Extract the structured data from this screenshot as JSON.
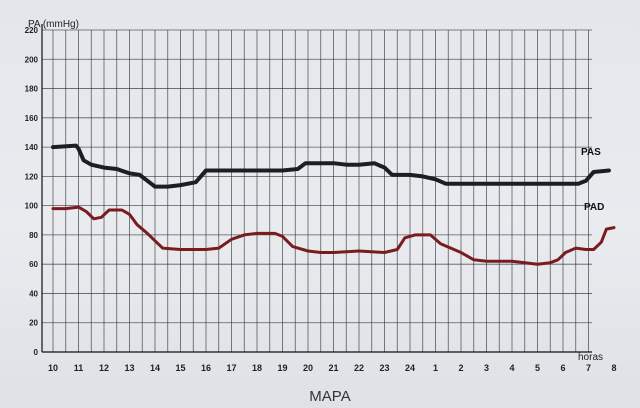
{
  "chart_data": {
    "type": "line",
    "ylabel": "PA (mmHg)",
    "xlabel": "horas",
    "caption": "MAPA",
    "ylim": [
      0,
      220
    ],
    "yticks": [
      0,
      20,
      40,
      60,
      80,
      100,
      120,
      140,
      160,
      180,
      200,
      220
    ],
    "xticks": [
      "10",
      "11",
      "12",
      "13",
      "14",
      "15",
      "16",
      "17",
      "18",
      "19",
      "20",
      "21",
      "22",
      "23",
      "24",
      "1",
      "2",
      "3",
      "4",
      "5",
      "6",
      "7",
      "8"
    ],
    "grid": true,
    "series": [
      {
        "name": "PAS",
        "color": "#1b1f24",
        "points": [
          [
            0,
            140
          ],
          [
            0.9,
            141
          ],
          [
            1.0,
            139
          ],
          [
            1.2,
            131
          ],
          [
            1.5,
            128
          ],
          [
            2.0,
            126
          ],
          [
            2.5,
            125
          ],
          [
            3.0,
            122
          ],
          [
            3.4,
            121
          ],
          [
            3.7,
            117
          ],
          [
            4.0,
            113
          ],
          [
            4.5,
            113
          ],
          [
            5.0,
            114
          ],
          [
            5.6,
            116
          ],
          [
            6.0,
            124
          ],
          [
            6.5,
            124
          ],
          [
            7.0,
            124
          ],
          [
            8.0,
            124
          ],
          [
            9.0,
            124
          ],
          [
            9.6,
            125
          ],
          [
            9.9,
            129
          ],
          [
            10.5,
            129
          ],
          [
            11.0,
            129
          ],
          [
            11.5,
            128
          ],
          [
            12.0,
            128
          ],
          [
            12.6,
            129
          ],
          [
            13.0,
            126
          ],
          [
            13.3,
            121
          ],
          [
            14.0,
            121
          ],
          [
            14.5,
            120
          ],
          [
            15.0,
            118
          ],
          [
            15.4,
            115
          ],
          [
            16.0,
            115
          ],
          [
            17.0,
            115
          ],
          [
            18.0,
            115
          ],
          [
            19.0,
            115
          ],
          [
            20.0,
            115
          ],
          [
            20.6,
            115
          ],
          [
            20.9,
            117
          ],
          [
            21.2,
            123
          ],
          [
            21.8,
            124
          ]
        ]
      },
      {
        "name": "PAD",
        "color": "#7a1c1f",
        "points": [
          [
            0,
            98
          ],
          [
            0.5,
            98
          ],
          [
            1.0,
            99
          ],
          [
            1.3,
            96
          ],
          [
            1.6,
            91
          ],
          [
            1.9,
            92
          ],
          [
            2.2,
            97
          ],
          [
            2.7,
            97
          ],
          [
            3.0,
            94
          ],
          [
            3.3,
            87
          ],
          [
            3.7,
            81
          ],
          [
            4.0,
            76
          ],
          [
            4.3,
            71
          ],
          [
            5.0,
            70
          ],
          [
            5.5,
            70
          ],
          [
            6.0,
            70
          ],
          [
            6.5,
            71
          ],
          [
            7.0,
            77
          ],
          [
            7.5,
            80
          ],
          [
            8.0,
            81
          ],
          [
            8.7,
            81
          ],
          [
            9.0,
            79
          ],
          [
            9.4,
            72
          ],
          [
            10.0,
            69
          ],
          [
            10.5,
            68
          ],
          [
            11.0,
            68
          ],
          [
            12.0,
            69
          ],
          [
            13.0,
            68
          ],
          [
            13.5,
            70
          ],
          [
            13.8,
            78
          ],
          [
            14.2,
            80
          ],
          [
            14.8,
            80
          ],
          [
            15.2,
            74
          ],
          [
            15.6,
            71
          ],
          [
            16.0,
            68
          ],
          [
            16.5,
            63
          ],
          [
            17.0,
            62
          ],
          [
            17.5,
            62
          ],
          [
            18.0,
            62
          ],
          [
            18.5,
            61
          ],
          [
            19.0,
            60
          ],
          [
            19.5,
            61
          ],
          [
            19.8,
            63
          ],
          [
            20.1,
            68
          ],
          [
            20.5,
            71
          ],
          [
            20.9,
            70
          ],
          [
            21.2,
            70
          ],
          [
            21.5,
            75
          ],
          [
            21.7,
            84
          ],
          [
            22.0,
            85
          ]
        ]
      }
    ]
  }
}
